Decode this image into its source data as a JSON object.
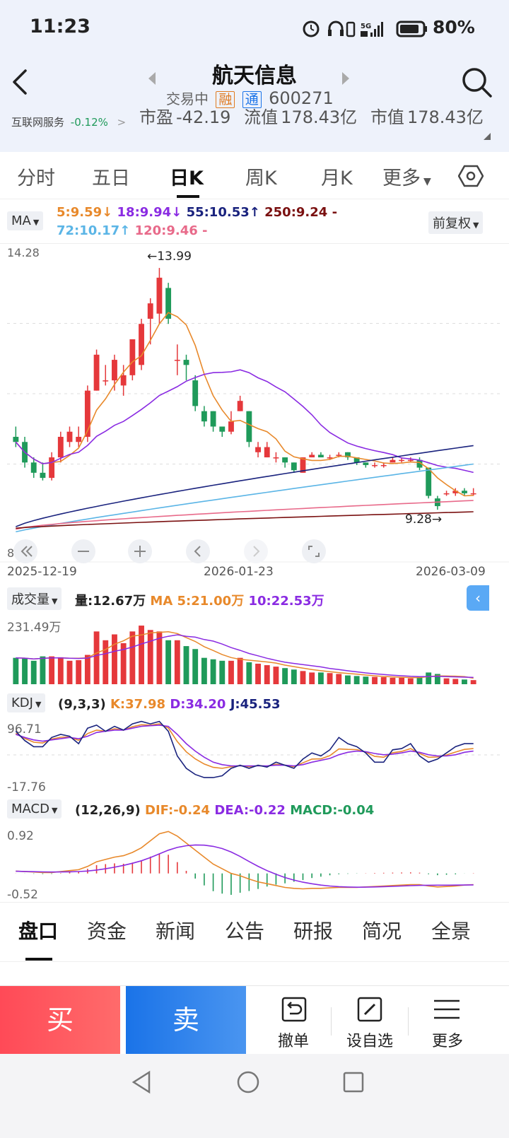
{
  "status": {
    "time": "11:23",
    "battery": "80%",
    "network": "5G"
  },
  "header": {
    "title": "航天信息",
    "trade_status": "交易中",
    "tag_rong": "融",
    "tag_tong": "通",
    "code": "600271",
    "industry": "互联网服务",
    "industry_change": "-0.12%",
    "pe": "市盈",
    "pe_value": "-42.19",
    "float_cap_label": "流值",
    "float_cap": "178.43亿",
    "mkt_cap_label": "市值",
    "mkt_cap": "178.43亿"
  },
  "period_tabs": [
    "分时",
    "五日",
    "日K",
    "周K",
    "月K",
    "更多"
  ],
  "ma_bar": {
    "type": "MA",
    "ma5": "5:9.59",
    "ma18": "18:9.94",
    "ma55": "55:10.53",
    "ma250": "250:9.24",
    "ma72": "72:10.17",
    "ma120": "120:9.46",
    "adjust": "前复权",
    "arrow_down": "↓",
    "arrow_up": "↑",
    "dash": "-"
  },
  "kline": {
    "y_top": "14.28",
    "y_bottom": "8.",
    "high_marker": "←13.99",
    "low_marker": "9.28→",
    "dates": [
      "2025-12-19",
      "2026-01-23",
      "2026-03-09"
    ]
  },
  "volume": {
    "label": "成交量",
    "vol": "量:12.67万",
    "ma5": "MA 5:21.00万",
    "ma10": "10:22.53万",
    "top": "231.49万"
  },
  "kdj": {
    "label": "KDJ",
    "params": "(9,3,3)",
    "k": "K:37.98",
    "d": "D:34.20",
    "j": "J:45.53",
    "top": "96.71",
    "bottom": "-17.76"
  },
  "macd": {
    "label": "MACD",
    "params": "(12,26,9)",
    "dif": "DIF:-0.24",
    "dea": "DEA:-0.22",
    "macd": "MACD:-0.04",
    "top": "0.92",
    "bottom": "-0.52"
  },
  "bottom_tabs": [
    "盘口",
    "资金",
    "新闻",
    "公告",
    "研报",
    "简况",
    "全景"
  ],
  "actions": {
    "buy": "买",
    "sell": "卖",
    "cancel": "撤单",
    "watchlist": "设自选",
    "more": "更多"
  },
  "colors": {
    "up": "#e5383b",
    "down": "#1f9a5a",
    "ma5": "#e8892b",
    "ma18": "#8a2be2",
    "ma55": "#1a237e",
    "ma72": "#5bb5e6",
    "ma120": "#e86a8a",
    "ma250": "#7a1010"
  },
  "chart_data": {
    "type": "candlestick",
    "title": "航天信息 日K",
    "high": 13.99,
    "low": 9.28,
    "ohlc": [
      [
        10.7,
        10.9,
        10.5,
        10.6
      ],
      [
        10.6,
        10.7,
        10.1,
        10.2
      ],
      [
        10.2,
        10.3,
        9.9,
        10.0
      ],
      [
        10.0,
        10.2,
        9.85,
        9.9
      ],
      [
        9.9,
        10.4,
        9.85,
        10.3
      ],
      [
        10.3,
        10.8,
        10.2,
        10.7
      ],
      [
        10.6,
        10.9,
        10.5,
        10.8
      ],
      [
        10.6,
        10.9,
        10.5,
        10.7
      ],
      [
        10.7,
        11.7,
        10.6,
        11.6
      ],
      [
        11.6,
        12.4,
        11.6,
        12.3
      ],
      [
        11.8,
        12.1,
        11.7,
        11.8
      ],
      [
        11.8,
        12.3,
        11.6,
        12.2
      ],
      [
        11.7,
        12.1,
        11.5,
        11.9
      ],
      [
        11.9,
        12.6,
        11.8,
        12.6
      ],
      [
        12.1,
        13.0,
        12.0,
        12.9
      ],
      [
        13.0,
        13.4,
        12.5,
        13.3
      ],
      [
        13.1,
        13.99,
        12.9,
        13.8
      ],
      [
        13.6,
        13.7,
        12.9,
        13.0
      ],
      [
        12.2,
        12.5,
        11.9,
        12.2
      ],
      [
        12.2,
        12.3,
        11.8,
        12.1
      ],
      [
        11.8,
        11.9,
        11.2,
        11.3
      ],
      [
        11.2,
        11.3,
        10.9,
        11.0
      ],
      [
        11.2,
        11.2,
        10.8,
        10.9
      ],
      [
        10.9,
        10.9,
        10.7,
        10.8
      ],
      [
        10.8,
        11.2,
        10.75,
        11.0
      ],
      [
        11.2,
        11.5,
        11.2,
        11.4
      ],
      [
        11.2,
        11.2,
        10.5,
        10.6
      ],
      [
        10.4,
        10.6,
        10.3,
        10.5
      ],
      [
        10.3,
        10.6,
        10.3,
        10.5
      ],
      [
        10.3,
        10.4,
        10.2,
        10.3
      ],
      [
        10.3,
        10.3,
        10.1,
        10.2
      ],
      [
        10.2,
        10.2,
        10.0,
        10.05
      ],
      [
        10.0,
        10.3,
        10.0,
        10.3
      ],
      [
        10.3,
        10.4,
        10.3,
        10.35
      ],
      [
        10.35,
        10.4,
        10.3,
        10.3
      ],
      [
        10.3,
        10.35,
        10.25,
        10.3
      ],
      [
        10.35,
        10.4,
        10.3,
        10.35
      ],
      [
        10.4,
        10.4,
        10.25,
        10.3
      ],
      [
        10.3,
        10.3,
        10.15,
        10.2
      ],
      [
        10.2,
        10.2,
        10.1,
        10.15
      ],
      [
        10.15,
        10.2,
        10.1,
        10.15
      ],
      [
        10.15,
        10.2,
        10.1,
        10.15
      ],
      [
        10.2,
        10.3,
        10.2,
        10.25
      ],
      [
        10.25,
        10.3,
        10.2,
        10.25
      ],
      [
        10.25,
        10.3,
        10.2,
        10.25
      ],
      [
        10.25,
        10.3,
        10.05,
        10.1
      ],
      [
        10.1,
        10.1,
        9.5,
        9.55
      ],
      [
        9.5,
        9.55,
        9.28,
        9.35
      ],
      [
        9.6,
        9.65,
        9.55,
        9.6
      ],
      [
        9.6,
        9.7,
        9.55,
        9.65
      ],
      [
        9.65,
        9.7,
        9.55,
        9.6
      ],
      [
        9.6,
        9.7,
        9.55,
        9.6
      ]
    ],
    "ylim": [
      8.8,
      14.28
    ]
  }
}
